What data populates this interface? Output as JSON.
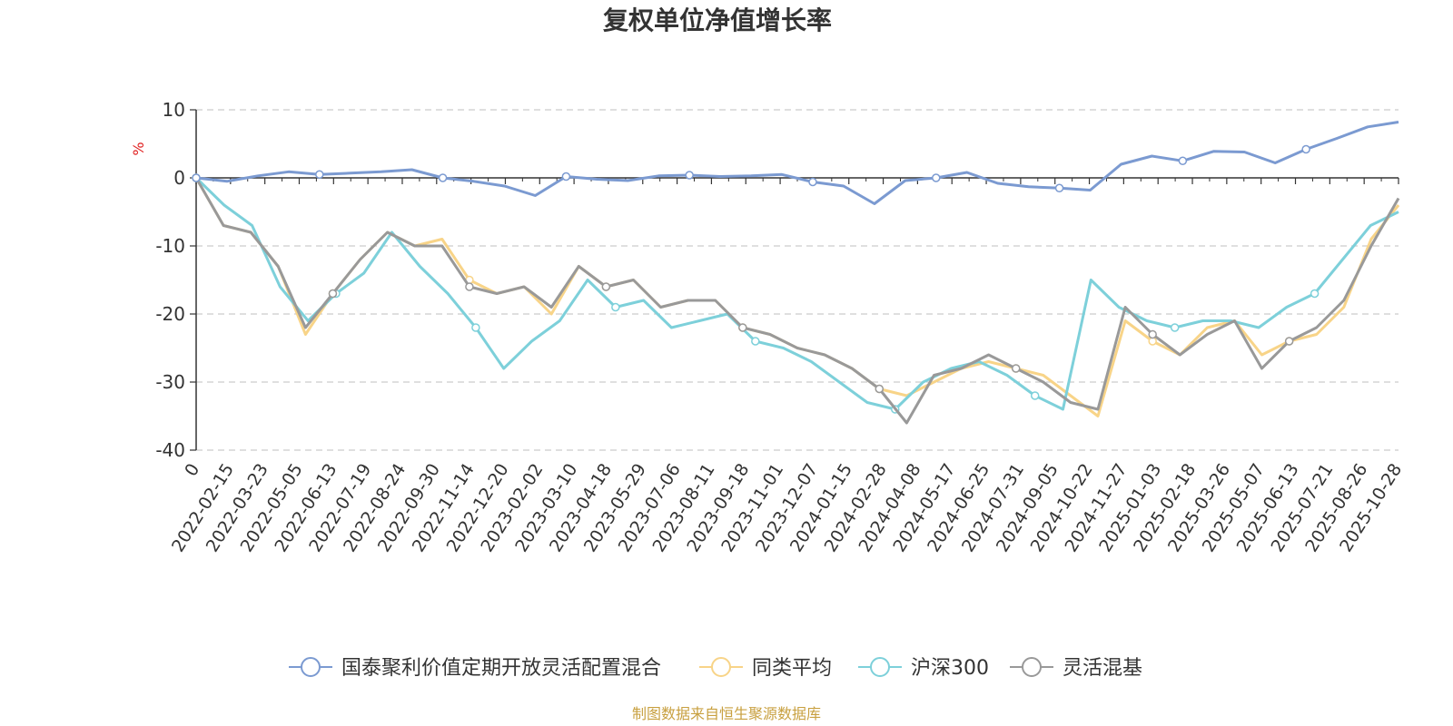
{
  "chart_data": {
    "type": "line",
    "title": "复权单位净值增长率",
    "ylabel": "%",
    "ylim": [
      -40,
      10
    ],
    "y_ticks": [
      10,
      0,
      -10,
      -20,
      -30,
      -40
    ],
    "x_tick_labels": [
      "0",
      "2022-02-15",
      "2022-03-23",
      "2022-05-05",
      "2022-06-13",
      "2022-07-19",
      "2022-08-24",
      "2022-09-30",
      "2022-11-14",
      "2022-12-20",
      "2023-02-02",
      "2023-03-10",
      "2023-04-18",
      "2023-05-29",
      "2023-07-06",
      "2023-08-11",
      "2023-09-18",
      "2023-11-01",
      "2023-12-07",
      "2024-01-15",
      "2024-02-28",
      "2024-04-08",
      "2024-05-17",
      "2024-06-25",
      "2024-07-31",
      "2024-09-05",
      "2024-10-22",
      "2024-11-27",
      "2025-01-03",
      "2025-02-18",
      "2025-03-26",
      "2025-05-07",
      "2025-06-13",
      "2025-07-21",
      "2025-08-26",
      "2025-10-28"
    ],
    "grid": "dashed-horizontal",
    "legend_position": "bottom",
    "series": [
      {
        "name": "国泰聚利价值定期开放灵活配置混合",
        "color": "#7b9ad1",
        "values": [
          0,
          -0.5,
          0.3,
          0.9,
          0.5,
          0.7,
          0.9,
          1.2,
          0,
          -0.5,
          -1.2,
          -2.6,
          0.2,
          -0.2,
          -0.4,
          0.3,
          0.4,
          0.2,
          0.3,
          0.5,
          -0.6,
          -1.2,
          -3.8,
          -0.4,
          0,
          0.8,
          -0.8,
          -1.3,
          -1.5,
          -1.8,
          2,
          3.2,
          2.5,
          3.9,
          3.8,
          2.2,
          4.2,
          5.8,
          7.5,
          8.2
        ]
      },
      {
        "name": "同类平均",
        "color": "#f8d488",
        "values": [
          0,
          -7,
          -8,
          -13,
          -23,
          -17,
          -12,
          -8,
          -10,
          -9,
          -15,
          -17,
          -16,
          -20,
          -13,
          -16,
          -15,
          -19,
          -18,
          -18,
          -22,
          -23,
          -25,
          -26,
          -28,
          -31,
          -32,
          -30,
          -28,
          -27,
          -28,
          -29,
          -32,
          -35,
          -21,
          -24,
          -26,
          -22,
          -21,
          -26,
          -24,
          -23,
          -19,
          -9,
          -4
        ]
      },
      {
        "name": "沪深300",
        "color": "#7dd0da",
        "values": [
          0,
          -4,
          -7,
          -16,
          -21,
          -17,
          -14,
          -8,
          -13,
          -17,
          -22,
          -28,
          -24,
          -21,
          -15,
          -19,
          -18,
          -22,
          -21,
          -20,
          -24,
          -25,
          -27,
          -30,
          -33,
          -34,
          -30,
          -28,
          -27,
          -29,
          -32,
          -34,
          -15,
          -19,
          -21,
          -22,
          -21,
          -21,
          -22,
          -19,
          -17,
          -12,
          -7,
          -5
        ]
      },
      {
        "name": "灵活混基",
        "color": "#999999",
        "values": [
          0,
          -7,
          -8,
          -13,
          -22,
          -17,
          -12,
          -8,
          -10,
          -10,
          -16,
          -17,
          -16,
          -19,
          -13,
          -16,
          -15,
          -19,
          -18,
          -18,
          -22,
          -23,
          -25,
          -26,
          -28,
          -31,
          -36,
          -29,
          -28,
          -26,
          -28,
          -30,
          -33,
          -34,
          -19,
          -23,
          -26,
          -23,
          -21,
          -28,
          -24,
          -22,
          -18,
          -10,
          -3
        ]
      }
    ]
  },
  "source": "制图数据来自恒生聚源数据库"
}
